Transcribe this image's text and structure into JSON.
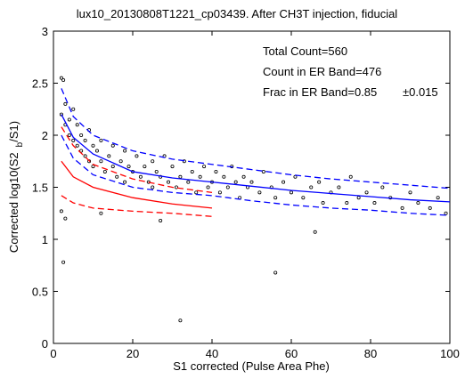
{
  "chart_data": {
    "type": "scatter",
    "title": "lux10_20130808T1221_cp03439. After CH3T injection, fiducial",
    "xlabel": "S1 corrected (Pulse Area Phe)",
    "ylabel": [
      "Corrected log10(S2",
      "b",
      "/S1)"
    ],
    "annotations": [
      "Total Count=560",
      "Count in ER Band=476",
      "Frac in ER Band=0.85",
      "±0.015"
    ],
    "xlim": [
      0,
      100
    ],
    "xticks": [
      0,
      20,
      40,
      60,
      80,
      100
    ],
    "ylim": [
      0,
      3
    ],
    "yticks": [
      0,
      0.5,
      1,
      1.5,
      2,
      2.5,
      3
    ],
    "series": [
      {
        "style": "dots",
        "color": "#000000",
        "x": [
          2,
          2.5,
          3,
          2,
          3,
          4,
          4,
          5,
          5,
          6,
          6,
          7,
          7,
          8,
          8,
          9,
          9,
          10,
          10,
          11,
          12,
          12,
          13,
          14,
          15,
          15,
          16,
          17,
          18,
          18,
          19,
          20,
          21,
          22,
          23,
          24,
          25,
          25,
          26,
          27,
          28,
          29,
          30,
          31,
          32,
          33,
          34,
          35,
          36,
          37,
          38,
          39,
          40,
          41,
          42,
          43,
          44,
          45,
          46,
          47,
          48,
          49,
          50,
          52,
          53,
          55,
          56,
          58,
          60,
          61,
          63,
          65,
          67,
          68,
          70,
          72,
          74,
          75,
          77,
          79,
          81,
          83,
          85,
          88,
          90,
          92,
          95,
          97,
          99,
          2.5,
          32,
          56,
          3,
          2,
          66,
          12,
          27
        ],
        "values": [
          2.55,
          2.53,
          2.3,
          2.2,
          2.1,
          2.15,
          2.0,
          1.95,
          2.25,
          1.9,
          2.1,
          1.85,
          2.0,
          1.8,
          1.95,
          1.75,
          2.05,
          1.7,
          1.9,
          1.85,
          1.75,
          1.95,
          1.65,
          1.8,
          1.7,
          1.9,
          1.6,
          1.75,
          1.85,
          1.55,
          1.7,
          1.65,
          1.8,
          1.6,
          1.7,
          1.55,
          1.75,
          1.5,
          1.65,
          1.6,
          1.8,
          1.55,
          1.7,
          1.5,
          1.6,
          1.75,
          1.55,
          1.65,
          1.45,
          1.6,
          1.7,
          1.5,
          1.55,
          1.65,
          1.45,
          1.6,
          1.5,
          1.7,
          1.55,
          1.4,
          1.6,
          1.5,
          1.55,
          1.45,
          1.65,
          1.5,
          1.4,
          1.55,
          1.45,
          1.6,
          1.4,
          1.5,
          1.55,
          1.35,
          1.45,
          1.5,
          1.35,
          1.6,
          1.4,
          1.45,
          1.35,
          1.5,
          1.4,
          1.3,
          1.45,
          1.35,
          1.3,
          1.4,
          1.25,
          0.78,
          0.22,
          0.68,
          1.2,
          1.27,
          1.07,
          1.25,
          1.18
        ]
      },
      {
        "style": "solid",
        "color": "#0000ff",
        "x": [
          2,
          5,
          10,
          20,
          30,
          40,
          50,
          60,
          70,
          80,
          90,
          100
        ],
        "values": [
          2.2,
          1.98,
          1.82,
          1.65,
          1.59,
          1.55,
          1.51,
          1.47,
          1.44,
          1.41,
          1.38,
          1.36
        ]
      },
      {
        "style": "dashed",
        "color": "#0000ff",
        "x": [
          2,
          5,
          10,
          20,
          30,
          40,
          50,
          60,
          70,
          80,
          90,
          100
        ],
        "values": [
          2.45,
          2.18,
          2.0,
          1.85,
          1.77,
          1.72,
          1.67,
          1.62,
          1.58,
          1.55,
          1.52,
          1.49
        ]
      },
      {
        "style": "dashed",
        "color": "#0000ff",
        "x": [
          2,
          5,
          10,
          20,
          30,
          40,
          50,
          60,
          70,
          80,
          90,
          100
        ],
        "values": [
          2.0,
          1.78,
          1.62,
          1.5,
          1.45,
          1.42,
          1.37,
          1.33,
          1.3,
          1.28,
          1.25,
          1.23
        ]
      },
      {
        "style": "solid",
        "color": "#ff0000",
        "x": [
          2,
          5,
          10,
          20,
          30,
          40
        ],
        "values": [
          1.75,
          1.6,
          1.5,
          1.4,
          1.34,
          1.3
        ]
      },
      {
        "style": "dashed",
        "color": "#ff0000",
        "x": [
          2,
          5,
          10,
          20,
          30,
          40
        ],
        "values": [
          2.08,
          1.9,
          1.72,
          1.58,
          1.5,
          1.45
        ]
      },
      {
        "style": "dashed",
        "color": "#ff0000",
        "x": [
          2,
          5,
          10,
          20,
          30,
          40
        ],
        "values": [
          1.42,
          1.35,
          1.3,
          1.27,
          1.25,
          1.22
        ]
      }
    ]
  }
}
